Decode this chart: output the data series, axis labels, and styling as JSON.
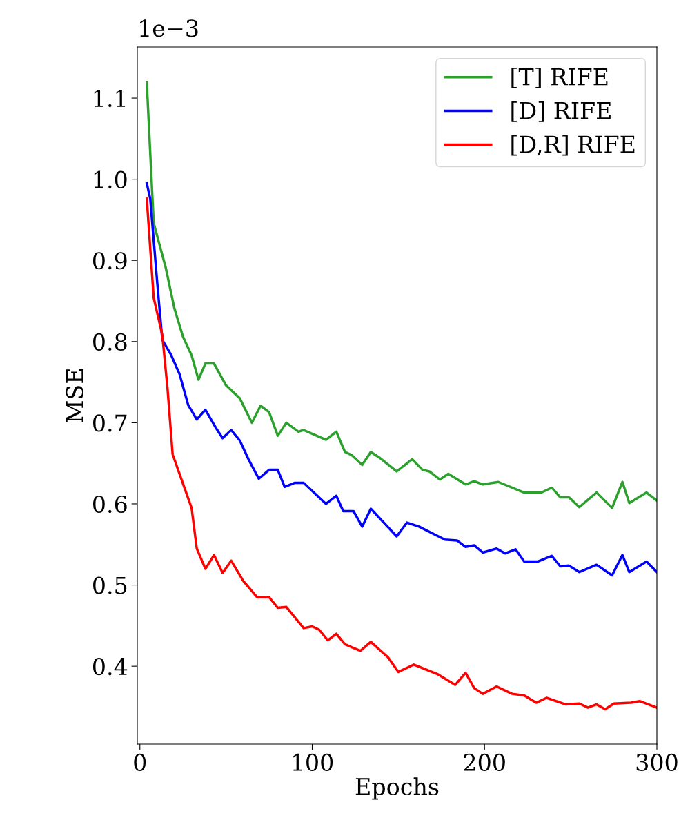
{
  "chart_data": {
    "type": "line",
    "xlabel": "Epochs",
    "ylabel": "MSE",
    "annotations": [
      "1e−3"
    ],
    "xlim": [
      -1.5,
      300
    ],
    "ylim": [
      0.304,
      1.163
    ],
    "xticks": [
      0,
      100,
      200,
      300
    ],
    "yticks": [
      0.4,
      0.5,
      0.6,
      0.7,
      0.8,
      0.9,
      {
        "value": 1,
        "label": "1.0"
      },
      1.1
    ],
    "grid": false,
    "legend": "top right",
    "marker": "none",
    "line_style": "solid",
    "series": [
      {
        "name": "[T] RIFE",
        "color": "#2ca02c",
        "x": [
          4,
          8,
          15,
          20,
          25,
          30,
          34,
          38,
          43,
          50,
          58,
          65,
          70,
          75,
          80,
          85,
          92,
          95,
          108,
          114,
          119,
          123,
          129,
          134,
          139,
          149,
          158,
          164,
          168,
          174,
          179,
          189,
          194,
          199,
          208,
          223,
          233,
          239,
          244,
          249,
          255,
          265,
          274,
          280,
          284,
          294,
          300
        ],
        "values": [
          1.119,
          0.946,
          0.891,
          0.841,
          0.806,
          0.783,
          0.753,
          0.773,
          0.773,
          0.746,
          0.73,
          0.7,
          0.721,
          0.713,
          0.684,
          0.7,
          0.689,
          0.691,
          0.679,
          0.689,
          0.664,
          0.66,
          0.648,
          0.664,
          0.657,
          0.64,
          0.655,
          0.642,
          0.64,
          0.63,
          0.637,
          0.624,
          0.628,
          0.624,
          0.627,
          0.614,
          0.614,
          0.62,
          0.608,
          0.608,
          0.596,
          0.614,
          0.595,
          0.627,
          0.601,
          0.614,
          0.604
        ]
      },
      {
        "name": "[D] RIFE",
        "color": "#0000ff",
        "x": [
          4,
          6,
          10,
          13,
          18,
          23,
          28,
          33,
          38,
          44,
          48,
          53,
          58,
          63,
          69,
          75,
          80,
          84,
          90,
          95,
          108,
          114,
          118,
          124,
          129,
          134,
          149,
          155,
          162,
          177,
          184,
          189,
          194,
          199,
          207,
          212,
          218,
          223,
          231,
          239,
          244,
          249,
          255,
          265,
          274,
          280,
          284,
          294,
          300
        ],
        "values": [
          0.995,
          0.976,
          0.874,
          0.802,
          0.784,
          0.76,
          0.722,
          0.704,
          0.716,
          0.694,
          0.681,
          0.691,
          0.678,
          0.655,
          0.631,
          0.642,
          0.642,
          0.621,
          0.626,
          0.626,
          0.6,
          0.61,
          0.591,
          0.591,
          0.572,
          0.594,
          0.56,
          0.577,
          0.572,
          0.556,
          0.555,
          0.547,
          0.549,
          0.54,
          0.545,
          0.539,
          0.544,
          0.529,
          0.529,
          0.536,
          0.523,
          0.524,
          0.516,
          0.525,
          0.512,
          0.537,
          0.516,
          0.529,
          0.516
        ]
      },
      {
        "name": "[D,R] RIFE",
        "color": "#ff0000",
        "x": [
          4,
          8,
          13,
          16,
          19,
          25,
          30,
          33,
          38,
          43,
          48,
          53,
          60,
          68,
          75,
          80,
          85,
          95,
          100,
          104,
          109,
          114,
          119,
          128,
          134,
          144,
          150,
          159,
          173,
          183,
          189,
          194,
          199,
          207,
          216,
          223,
          230,
          236,
          247,
          255,
          260,
          265,
          270,
          275,
          285,
          290,
          300
        ],
        "values": [
          0.976,
          0.854,
          0.808,
          0.743,
          0.661,
          0.625,
          0.595,
          0.545,
          0.52,
          0.537,
          0.515,
          0.53,
          0.505,
          0.485,
          0.485,
          0.472,
          0.473,
          0.447,
          0.449,
          0.445,
          0.432,
          0.44,
          0.427,
          0.419,
          0.43,
          0.411,
          0.393,
          0.402,
          0.39,
          0.377,
          0.392,
          0.373,
          0.366,
          0.375,
          0.366,
          0.364,
          0.355,
          0.361,
          0.353,
          0.354,
          0.349,
          0.353,
          0.347,
          0.354,
          0.355,
          0.357,
          0.349
        ]
      }
    ]
  }
}
